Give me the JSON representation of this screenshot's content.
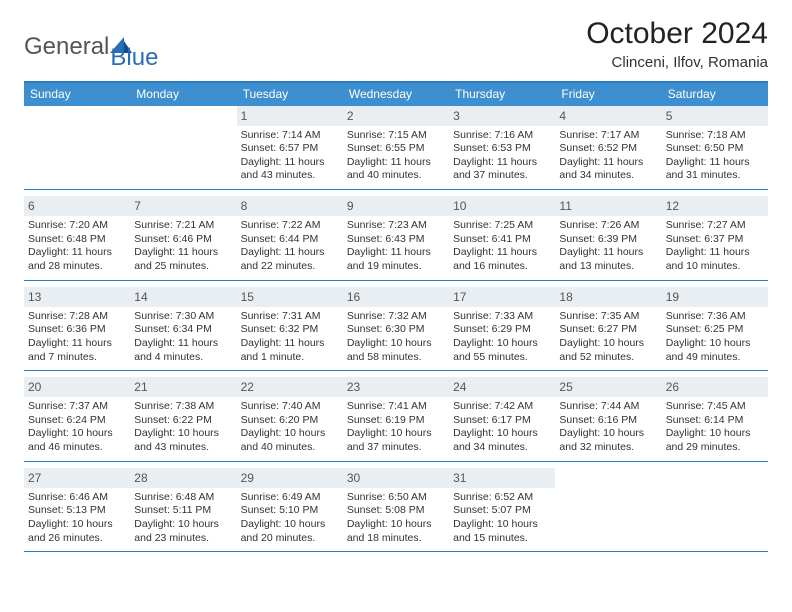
{
  "brand": {
    "word1": "General",
    "word2": "Blue",
    "logo_color": "#2a6db3"
  },
  "header": {
    "title": "October 2024",
    "location": "Clinceni, Ilfov, Romania"
  },
  "colors": {
    "header_bar": "#3d8fcf",
    "header_border": "#2a7bbf",
    "daynum_bg": "#e9eef2",
    "text": "#333333"
  },
  "dow": [
    "Sunday",
    "Monday",
    "Tuesday",
    "Wednesday",
    "Thursday",
    "Friday",
    "Saturday"
  ],
  "days": [
    {
      "n": 1,
      "sr": "7:14 AM",
      "ss": "6:57 PM",
      "dl": "11 hours and 43 minutes."
    },
    {
      "n": 2,
      "sr": "7:15 AM",
      "ss": "6:55 PM",
      "dl": "11 hours and 40 minutes."
    },
    {
      "n": 3,
      "sr": "7:16 AM",
      "ss": "6:53 PM",
      "dl": "11 hours and 37 minutes."
    },
    {
      "n": 4,
      "sr": "7:17 AM",
      "ss": "6:52 PM",
      "dl": "11 hours and 34 minutes."
    },
    {
      "n": 5,
      "sr": "7:18 AM",
      "ss": "6:50 PM",
      "dl": "11 hours and 31 minutes."
    },
    {
      "n": 6,
      "sr": "7:20 AM",
      "ss": "6:48 PM",
      "dl": "11 hours and 28 minutes."
    },
    {
      "n": 7,
      "sr": "7:21 AM",
      "ss": "6:46 PM",
      "dl": "11 hours and 25 minutes."
    },
    {
      "n": 8,
      "sr": "7:22 AM",
      "ss": "6:44 PM",
      "dl": "11 hours and 22 minutes."
    },
    {
      "n": 9,
      "sr": "7:23 AM",
      "ss": "6:43 PM",
      "dl": "11 hours and 19 minutes."
    },
    {
      "n": 10,
      "sr": "7:25 AM",
      "ss": "6:41 PM",
      "dl": "11 hours and 16 minutes."
    },
    {
      "n": 11,
      "sr": "7:26 AM",
      "ss": "6:39 PM",
      "dl": "11 hours and 13 minutes."
    },
    {
      "n": 12,
      "sr": "7:27 AM",
      "ss": "6:37 PM",
      "dl": "11 hours and 10 minutes."
    },
    {
      "n": 13,
      "sr": "7:28 AM",
      "ss": "6:36 PM",
      "dl": "11 hours and 7 minutes."
    },
    {
      "n": 14,
      "sr": "7:30 AM",
      "ss": "6:34 PM",
      "dl": "11 hours and 4 minutes."
    },
    {
      "n": 15,
      "sr": "7:31 AM",
      "ss": "6:32 PM",
      "dl": "11 hours and 1 minute."
    },
    {
      "n": 16,
      "sr": "7:32 AM",
      "ss": "6:30 PM",
      "dl": "10 hours and 58 minutes."
    },
    {
      "n": 17,
      "sr": "7:33 AM",
      "ss": "6:29 PM",
      "dl": "10 hours and 55 minutes."
    },
    {
      "n": 18,
      "sr": "7:35 AM",
      "ss": "6:27 PM",
      "dl": "10 hours and 52 minutes."
    },
    {
      "n": 19,
      "sr": "7:36 AM",
      "ss": "6:25 PM",
      "dl": "10 hours and 49 minutes."
    },
    {
      "n": 20,
      "sr": "7:37 AM",
      "ss": "6:24 PM",
      "dl": "10 hours and 46 minutes."
    },
    {
      "n": 21,
      "sr": "7:38 AM",
      "ss": "6:22 PM",
      "dl": "10 hours and 43 minutes."
    },
    {
      "n": 22,
      "sr": "7:40 AM",
      "ss": "6:20 PM",
      "dl": "10 hours and 40 minutes."
    },
    {
      "n": 23,
      "sr": "7:41 AM",
      "ss": "6:19 PM",
      "dl": "10 hours and 37 minutes."
    },
    {
      "n": 24,
      "sr": "7:42 AM",
      "ss": "6:17 PM",
      "dl": "10 hours and 34 minutes."
    },
    {
      "n": 25,
      "sr": "7:44 AM",
      "ss": "6:16 PM",
      "dl": "10 hours and 32 minutes."
    },
    {
      "n": 26,
      "sr": "7:45 AM",
      "ss": "6:14 PM",
      "dl": "10 hours and 29 minutes."
    },
    {
      "n": 27,
      "sr": "6:46 AM",
      "ss": "5:13 PM",
      "dl": "10 hours and 26 minutes."
    },
    {
      "n": 28,
      "sr": "6:48 AM",
      "ss": "5:11 PM",
      "dl": "10 hours and 23 minutes."
    },
    {
      "n": 29,
      "sr": "6:49 AM",
      "ss": "5:10 PM",
      "dl": "10 hours and 20 minutes."
    },
    {
      "n": 30,
      "sr": "6:50 AM",
      "ss": "5:08 PM",
      "dl": "10 hours and 18 minutes."
    },
    {
      "n": 31,
      "sr": "6:52 AM",
      "ss": "5:07 PM",
      "dl": "10 hours and 15 minutes."
    }
  ],
  "layout": {
    "leading_blanks": 2,
    "weeks": 5,
    "cols": 7
  },
  "labels": {
    "sunrise": "Sunrise:",
    "sunset": "Sunset:",
    "daylight": "Daylight:"
  }
}
